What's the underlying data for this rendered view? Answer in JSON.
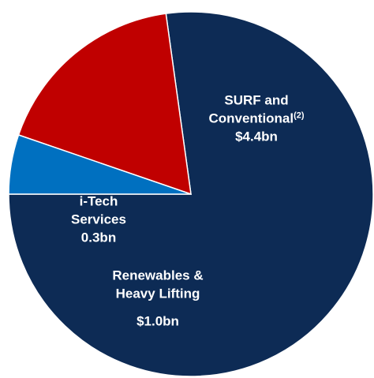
{
  "chart_data": {
    "type": "pie",
    "categories": [
      "SURF and Conventional",
      "Renewables & Heavy Lifting",
      "i-Tech Services"
    ],
    "category_notes": [
      "(2)",
      null,
      null
    ],
    "values": [
      4.4,
      1.0,
      0.3
    ],
    "value_labels": [
      "$4.4bn",
      "$1.0bn",
      "0.3bn"
    ],
    "colors": [
      "#0d2b55",
      "#c00000",
      "#0070c0"
    ]
  }
}
